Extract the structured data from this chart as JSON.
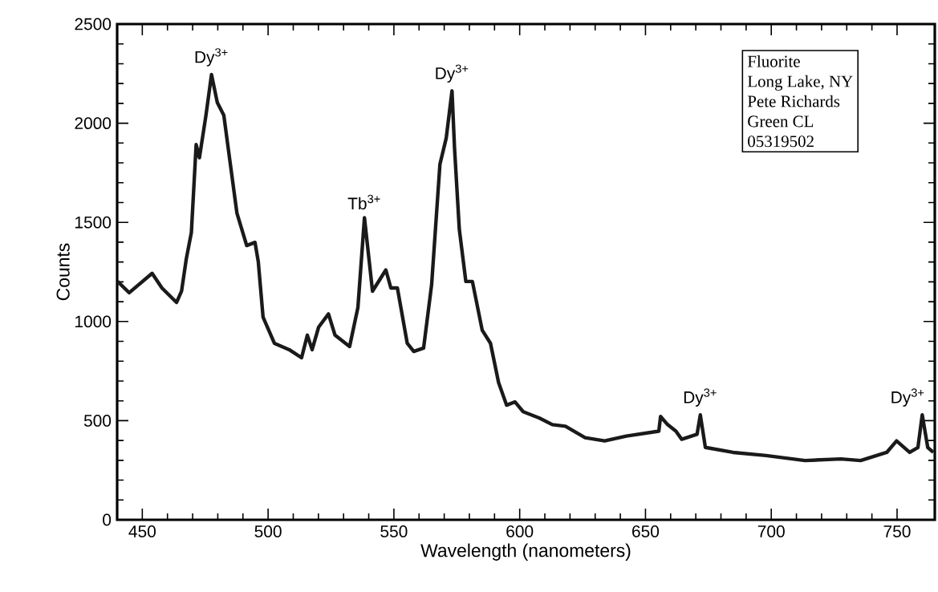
{
  "chart_data": {
    "type": "line",
    "xlabel": "Wavelength (nanometers)",
    "ylabel": "Counts",
    "xlim": [
      440,
      765
    ],
    "ylim": [
      0,
      2500
    ],
    "xticks": [
      450,
      500,
      550,
      600,
      650,
      700,
      750
    ],
    "yticks": [
      0,
      500,
      1000,
      1500,
      2000,
      2500
    ],
    "x": [
      440.2,
      444.8,
      453.9,
      457.8,
      463.6,
      465.6,
      467.5,
      469.5,
      471.4,
      472.7,
      475.3,
      477.5,
      479.8,
      482.4,
      485,
      487.6,
      491.5,
      494.8,
      496.1,
      498,
      502.5,
      508.4,
      513.3,
      515.6,
      517.5,
      520.1,
      524,
      526.6,
      532.4,
      535.7,
      538.3,
      541.5,
      546.8,
      548.8,
      551.4,
      555.3,
      557.9,
      561.8,
      565,
      568.3,
      570.8,
      573.1,
      574.1,
      576,
      578.6,
      581.2,
      585.1,
      588.4,
      591.6,
      594.8,
      598.1,
      601.4,
      607.9,
      613,
      618.2,
      626,
      633.8,
      642.4,
      655.3,
      656,
      658.8,
      662.1,
      664.4,
      670.5,
      671.8,
      673.8,
      684.8,
      697.9,
      713.4,
      727.7,
      735.5,
      745.9,
      749.8,
      755,
      758.3,
      760,
      762.2,
      764.4
    ],
    "series": [
      {
        "color": "#1a1a1a",
        "values": [
          1202,
          1145,
          1243,
          1169,
          1096,
          1153,
          1317,
          1449,
          1892,
          1826,
          2040,
          2245,
          2105,
          2040,
          1793,
          1547,
          1383,
          1399,
          1301,
          1022,
          890,
          858,
          817,
          931,
          858,
          972,
          1038,
          931,
          874,
          1071,
          1523,
          1153,
          1260,
          1169,
          1169,
          890,
          849,
          866,
          1186,
          1793,
          1925,
          2163,
          1875,
          1465,
          1202,
          1202,
          956,
          890,
          693,
          578,
          595,
          545,
          513,
          480,
          472,
          414,
          398,
          422,
          447,
          521,
          480,
          447,
          406,
          431,
          529,
          365,
          340,
          324,
          299,
          307,
          299,
          340,
          398,
          340,
          365,
          529,
          365,
          340
        ]
      }
    ],
    "annotations": [
      {
        "text": "Dy$^{3+}$",
        "x": 477.5,
        "y": 2245
      },
      {
        "text": "Tb$^{3+}$",
        "x": 538.3,
        "y": 1523
      },
      {
        "text": "Dy$^{3+}$",
        "x": 573.1,
        "y": 2163
      },
      {
        "text": "Dy$^{3+}$",
        "x": 671.8,
        "y": 529
      },
      {
        "text": "Dy$^{3+}$",
        "x": 760,
        "y": 529
      },
      "Fluorite",
      "Long Lake, NY",
      "Pete Richards",
      "Green CL",
      "05319502"
    ]
  }
}
